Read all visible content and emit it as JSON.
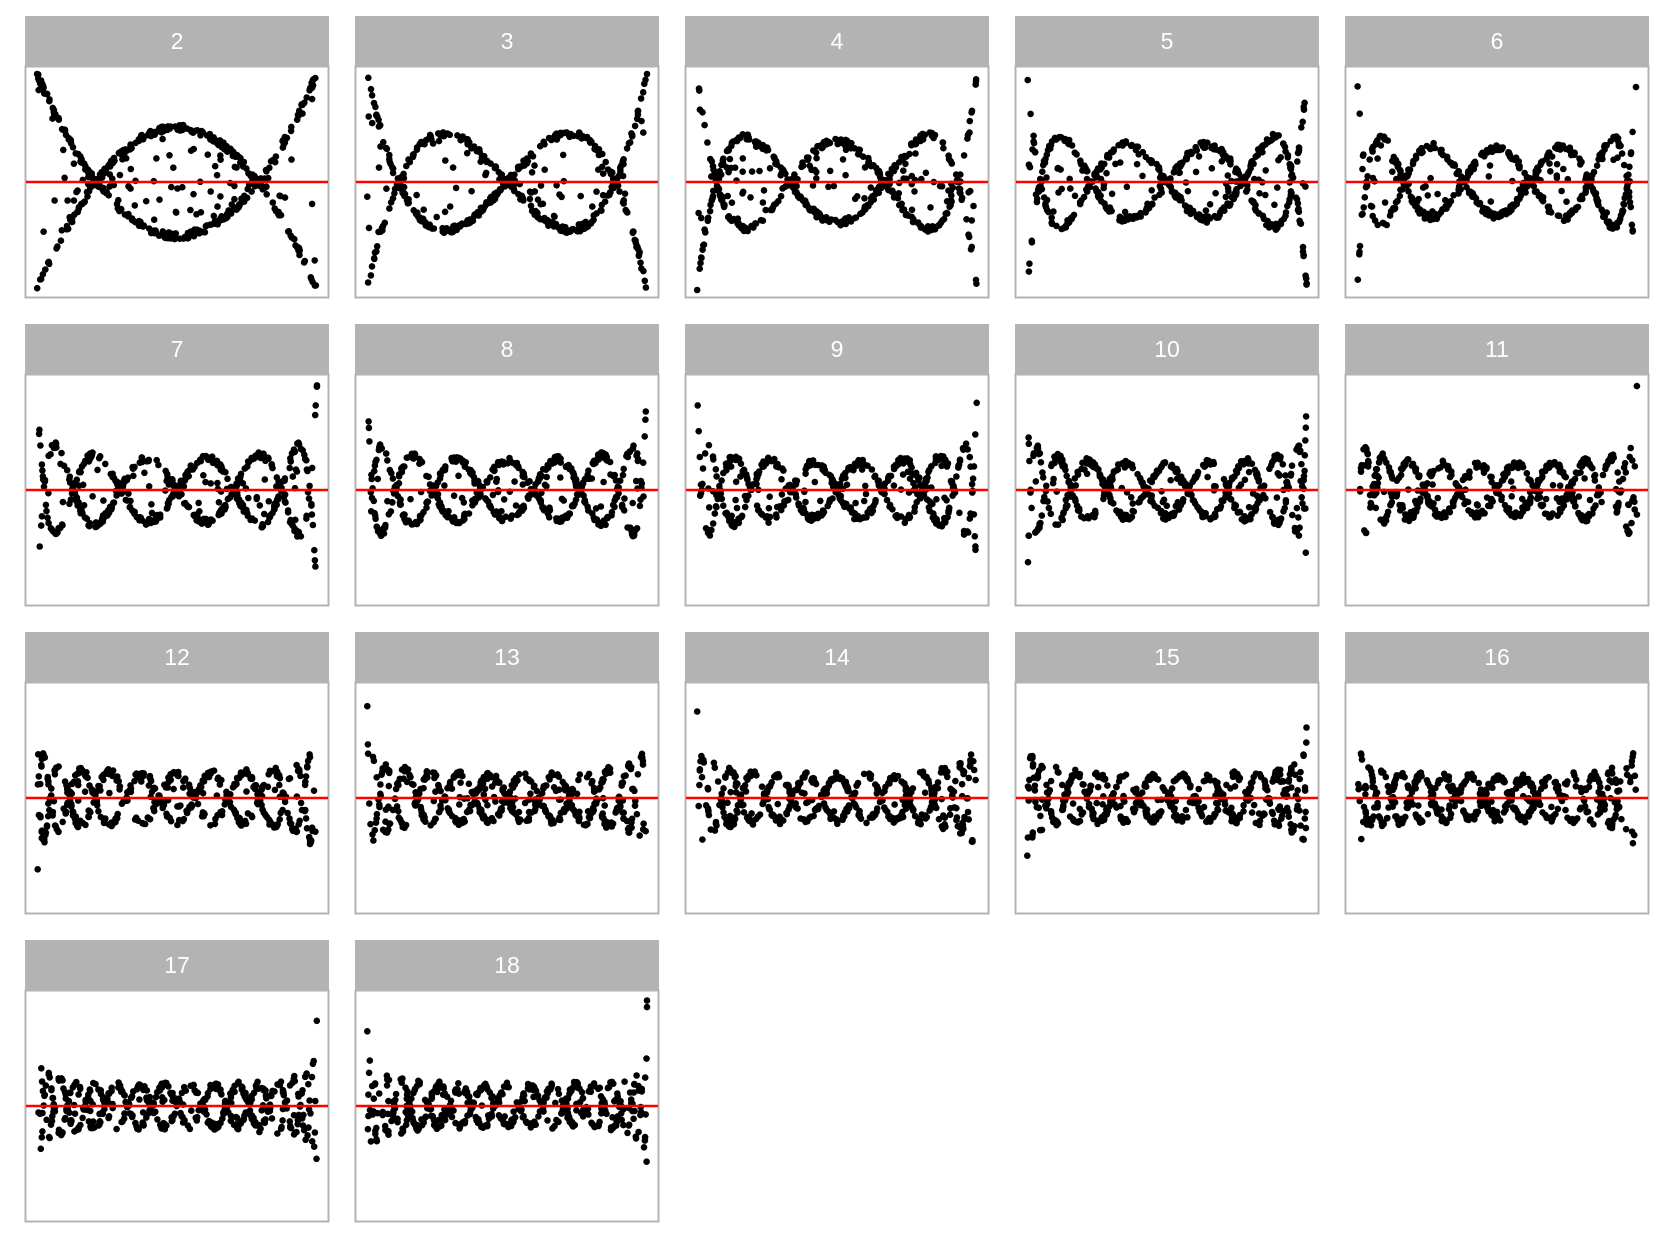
{
  "chart_data": {
    "type": "scatter",
    "layout": "facet-grid",
    "title": "",
    "xlabel": "",
    "ylabel": "",
    "xlim": [
      0,
      1
    ],
    "ylim": [
      -1,
      1
    ],
    "grid": false,
    "legend": "none",
    "colors": {
      "points": "#000000",
      "reference_line": "#ff0000",
      "strip_background": "#b3b3b3",
      "strip_text": "#ffffff",
      "panel_border": "#b3b3b3",
      "panel_background": "#ffffff"
    },
    "point_count_per_panel": 500,
    "panels": [
      {
        "label": "2",
        "harmonic": 2,
        "ref_y": 0.0
      },
      {
        "label": "3",
        "harmonic": 3,
        "ref_y": 0.0
      },
      {
        "label": "4",
        "harmonic": 4,
        "ref_y": 0.0
      },
      {
        "label": "5",
        "harmonic": 5,
        "ref_y": 0.0
      },
      {
        "label": "6",
        "harmonic": 6,
        "ref_y": 0.0
      },
      {
        "label": "7",
        "harmonic": 7,
        "ref_y": 0.0
      },
      {
        "label": "8",
        "harmonic": 8,
        "ref_y": 0.0
      },
      {
        "label": "9",
        "harmonic": 9,
        "ref_y": 0.0
      },
      {
        "label": "10",
        "harmonic": 10,
        "ref_y": 0.0
      },
      {
        "label": "11",
        "harmonic": 11,
        "ref_y": 0.0
      },
      {
        "label": "12",
        "harmonic": 12,
        "ref_y": 0.0
      },
      {
        "label": "13",
        "harmonic": 13,
        "ref_y": 0.0
      },
      {
        "label": "14",
        "harmonic": 14,
        "ref_y": 0.0
      },
      {
        "label": "15",
        "harmonic": 15,
        "ref_y": 0.0
      },
      {
        "label": "16",
        "harmonic": 16,
        "ref_y": 0.0
      },
      {
        "label": "17",
        "harmonic": 17,
        "ref_y": 0.0
      },
      {
        "label": "18",
        "harmonic": 18,
        "ref_y": 0.0
      }
    ]
  }
}
